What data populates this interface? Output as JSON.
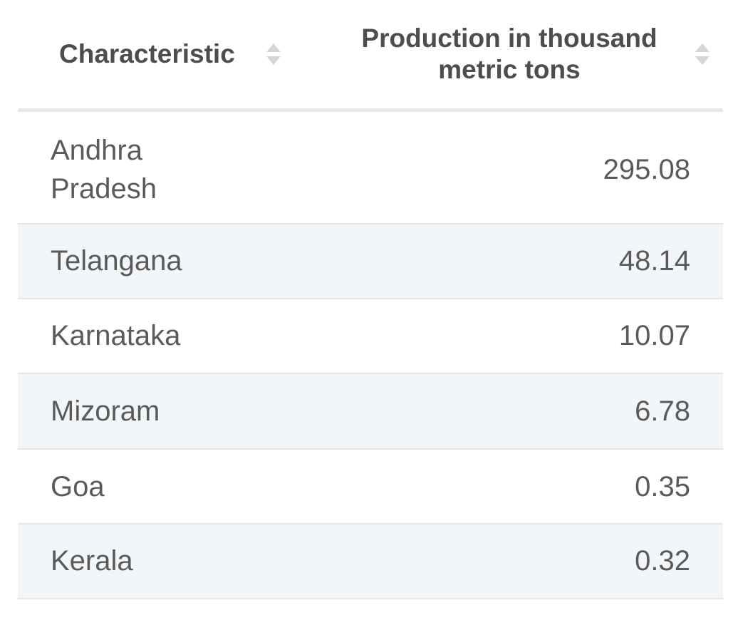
{
  "chart_data": {
    "type": "table",
    "columns": [
      "Characteristic",
      "Production in thousand metric tons"
    ],
    "rows": [
      {
        "name": "Andhra Pradesh",
        "value": "295.08"
      },
      {
        "name": "Telangana",
        "value": "48.14"
      },
      {
        "name": "Karnataka",
        "value": "10.07"
      },
      {
        "name": "Mizoram",
        "value": "6.78"
      },
      {
        "name": "Goa",
        "value": "0.35"
      },
      {
        "name": "Kerala",
        "value": "0.32"
      }
    ]
  },
  "icons": {
    "sort": "sort-icon"
  },
  "colors": {
    "header_text": "#4d4d4d",
    "row_text": "#5a5a5a",
    "alt_row_bg": "#f3f6f9",
    "divider": "#e6e6e6"
  }
}
